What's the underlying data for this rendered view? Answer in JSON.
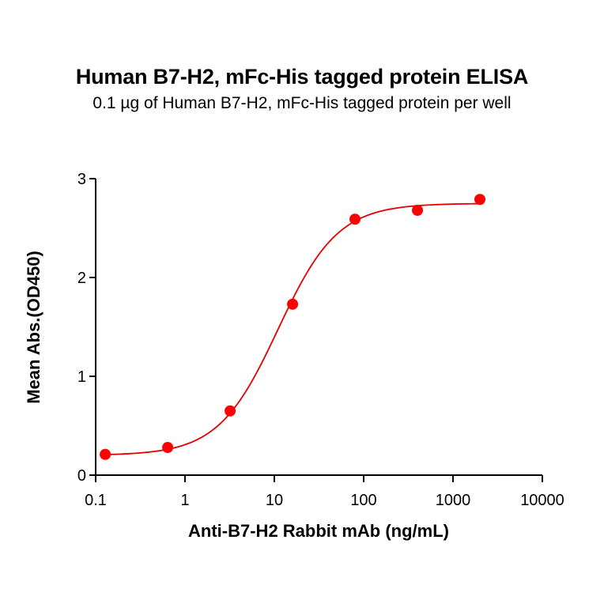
{
  "chart": {
    "title": "Human B7-H2, mFc-His tagged protein ELISA",
    "subtitle": "0.1 µg of Human B7-H2, mFc-His tagged protein per well"
  },
  "colors": {
    "series": "#ff0000",
    "curve": "#e00000",
    "axis": "#000000"
  },
  "chart_data": {
    "type": "scatter",
    "title": "Human B7-H2, mFc-His tagged protein ELISA",
    "subtitle": "0.1 µg of Human B7-H2, mFc-His tagged protein per well",
    "xlabel": "Anti-B7-H2 Rabbit mAb (ng/mL)",
    "ylabel": "Mean Abs.(OD450)",
    "xscale": "log",
    "xlim": [
      0.1,
      10000
    ],
    "ylim": [
      0,
      3
    ],
    "xticks": [
      "0.1",
      "1",
      "10",
      "100",
      "1000",
      "10000"
    ],
    "yticks": [
      "0",
      "1",
      "2",
      "3"
    ],
    "grid": false,
    "legend": null,
    "series": [
      {
        "name": "Anti-B7-H2 Rabbit mAb",
        "x": [
          0.128,
          0.64,
          3.2,
          16,
          80,
          400,
          2000
        ],
        "y": [
          0.21,
          0.28,
          0.65,
          1.73,
          2.59,
          2.68,
          2.79
        ]
      }
    ],
    "fit": {
      "model": "4PL",
      "bottom": 0.2,
      "top": 2.75,
      "ec50": 11,
      "hill": 1.3
    }
  }
}
